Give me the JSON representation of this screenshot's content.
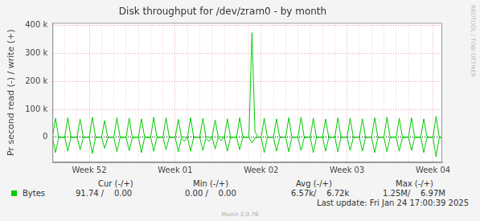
{
  "chart_data": {
    "type": "line",
    "title": "Disk throughput for /dev/zram0 - by month",
    "y_label": "Pr second read (-) / write (+)",
    "categories": [
      null,
      null,
      null,
      null,
      null,
      null,
      null,
      null,
      null,
      null,
      null,
      null,
      "Week 52",
      null,
      null,
      null,
      null,
      null,
      null,
      null,
      null,
      null,
      null,
      null,
      null,
      null,
      null,
      null,
      null,
      null,
      null,
      null,
      null,
      null,
      null,
      null,
      null,
      null,
      null,
      null,
      "Week 01",
      null,
      null,
      null,
      null,
      null,
      null,
      null,
      null,
      null,
      null,
      null,
      null,
      null,
      null,
      null,
      null,
      null,
      null,
      null,
      null,
      null,
      null,
      null,
      null,
      null,
      null,
      null,
      "Week 02",
      null,
      null,
      null,
      null,
      null,
      null,
      null,
      null,
      null,
      null,
      null,
      null,
      null,
      null,
      null,
      null,
      null,
      null,
      null,
      null,
      null,
      null,
      null,
      null,
      null,
      null,
      null,
      "Week 03",
      null,
      null,
      null,
      null,
      null,
      null,
      null,
      null,
      null,
      null,
      null,
      null,
      null,
      null,
      null,
      null,
      null,
      null,
      null,
      null,
      null,
      null,
      null,
      null,
      null,
      null,
      null,
      "Week 04",
      null,
      null,
      null
    ],
    "series": [
      {
        "name": "Bytes",
        "color": "#00cc00",
        "values": [
          0,
          68000,
          2000,
          0,
          0,
          70000,
          1000,
          0,
          0,
          65000,
          2000,
          0,
          0,
          72000,
          3000,
          0,
          0,
          60000,
          1000,
          0,
          0,
          70000,
          2000,
          0,
          0,
          68000,
          1000,
          0,
          0,
          66000,
          2000,
          0,
          0,
          72000,
          1000,
          0,
          0,
          70000,
          3000,
          0,
          0,
          64000,
          1000,
          0,
          0,
          70000,
          2000,
          0,
          0,
          68000,
          1000,
          0,
          0,
          62000,
          2000,
          0,
          0,
          66000,
          1000,
          0,
          0,
          70000,
          2000,
          0,
          0,
          375000,
          20000,
          0,
          0,
          68000,
          1000,
          0,
          0,
          66000,
          2000,
          0,
          0,
          70000,
          1000,
          0,
          0,
          72000,
          2000,
          0,
          0,
          68000,
          1000,
          0,
          0,
          65000,
          2000,
          0,
          0,
          70000,
          1000,
          0,
          0,
          68000,
          2000,
          0,
          0,
          66000,
          1000,
          0,
          0,
          70000,
          2000,
          0,
          0,
          72000,
          1000,
          0,
          0,
          68000,
          2000,
          0,
          0,
          70000,
          1000,
          0,
          0,
          66000,
          2000,
          0,
          0,
          75000,
          1000,
          0
        ],
        "read_values": [
          0,
          -55000,
          -3000,
          0,
          0,
          -50000,
          -2000,
          0,
          0,
          -45000,
          -3000,
          0,
          0,
          -58000,
          -2000,
          0,
          0,
          -40000,
          -3000,
          0,
          0,
          -52000,
          -2000,
          0,
          0,
          -48000,
          -3000,
          0,
          0,
          -55000,
          -2000,
          0,
          0,
          -50000,
          -3000,
          0,
          0,
          -45000,
          -2000,
          0,
          0,
          -52000,
          -3000,
          -15000,
          0,
          -50000,
          -2000,
          0,
          0,
          -48000,
          -3000,
          -15000,
          0,
          -42000,
          -2000,
          -12000,
          0,
          -50000,
          -3000,
          0,
          0,
          -45000,
          -2000,
          0,
          0,
          -20000,
          -3000,
          0,
          0,
          -55000,
          -2000,
          0,
          0,
          -50000,
          -3000,
          0,
          0,
          -52000,
          -2000,
          0,
          0,
          -48000,
          -3000,
          0,
          0,
          -55000,
          -2000,
          0,
          0,
          -50000,
          -3000,
          0,
          0,
          -52000,
          -2000,
          0,
          0,
          -48000,
          -3000,
          0,
          0,
          -50000,
          -2000,
          0,
          0,
          -55000,
          -3000,
          0,
          0,
          -52000,
          -2000,
          0,
          0,
          -50000,
          -3000,
          0,
          0,
          -48000,
          -2000,
          0,
          0,
          -55000,
          -3000,
          0,
          0,
          -70000,
          -2000,
          0
        ]
      }
    ],
    "ylim": [
      -90000,
      410000
    ],
    "yticks": [
      0,
      {
        "value": 100000,
        "label": "100 k"
      },
      {
        "value": 200000,
        "label": "200 k"
      },
      {
        "value": 300000,
        "label": "300 k"
      },
      {
        "value": 400000,
        "label": "400 k"
      }
    ],
    "grid": true,
    "legend_table": {
      "columns": [
        "Cur (-/+)",
        "Min (-/+)",
        "Avg (-/+)",
        "Max (-/+)"
      ],
      "row": [
        "91.74 /    0.00",
        "0.00 /    0.00",
        "6.57k/    6.72k",
        "1.25M/    6.97M"
      ]
    },
    "last_update": "Last update: Fri Jan 24 17:00:39 2025",
    "footer": "Munin 2.0.76",
    "side_text": "RRDTOOL / TOBI OETIKER"
  }
}
